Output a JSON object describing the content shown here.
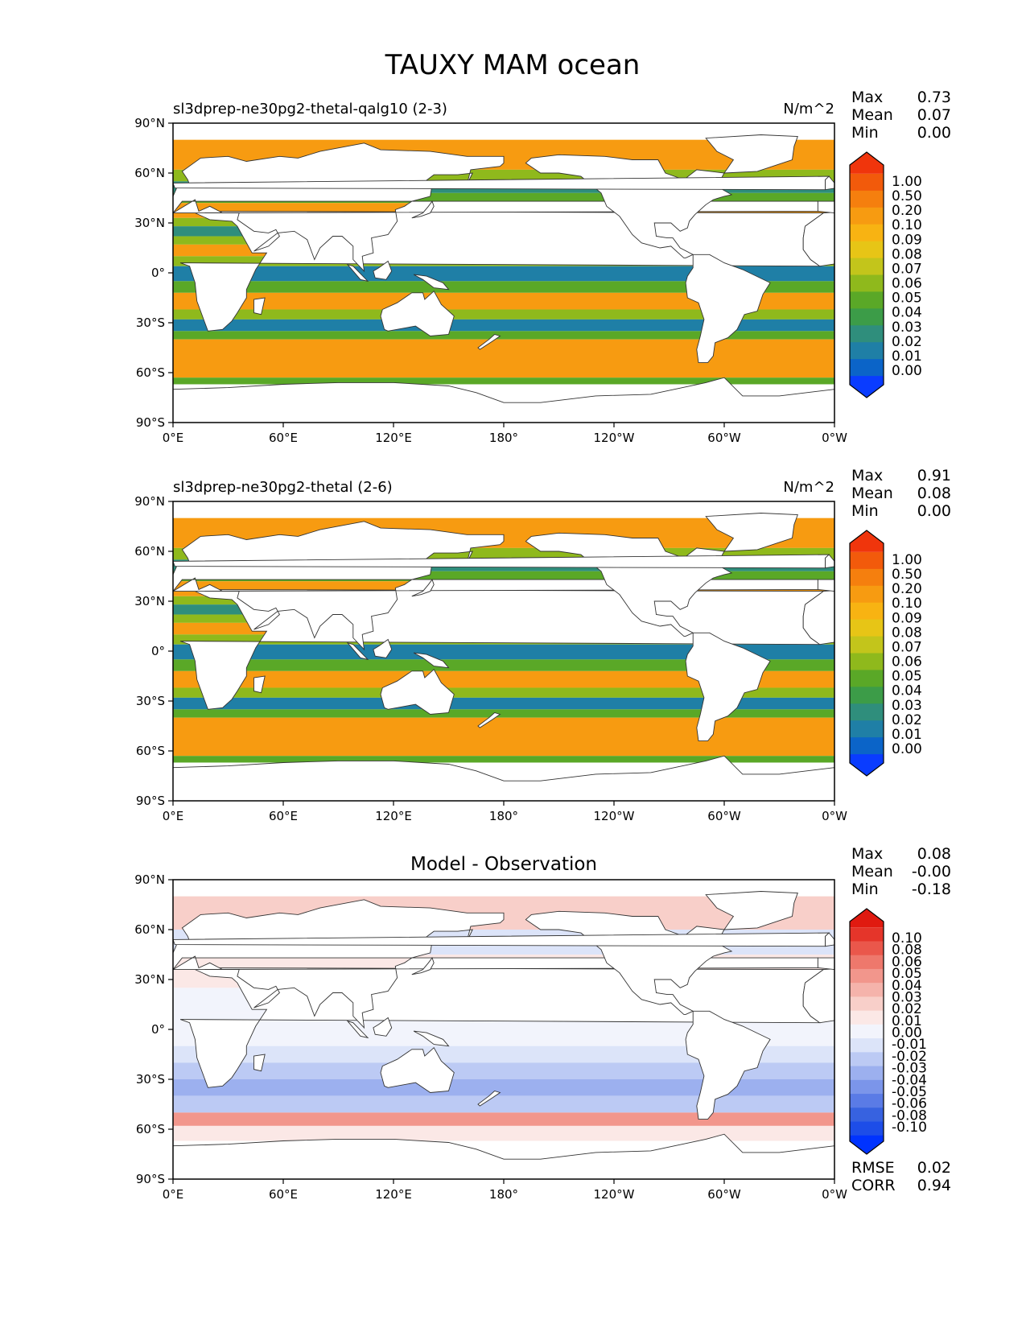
{
  "title": "TAUXY MAM ocean",
  "colors": {
    "land": "#ffffff",
    "coast": "#333333",
    "field_scale": [
      "#0a3cff",
      "#0b64c8",
      "#1f7fa6",
      "#2f8e7c",
      "#3c9c48",
      "#5aa827",
      "#8fb91c",
      "#c3c51b",
      "#e7c516",
      "#f8b312",
      "#f79b11",
      "#f57f0e",
      "#f25a0b",
      "#f0350c"
    ],
    "diff_scale": [
      "#0033ff",
      "#1d4de8",
      "#3762e0",
      "#5a7be6",
      "#7b95ea",
      "#9cb0ef",
      "#bccaf4",
      "#dce4f9",
      "#f2f4fc",
      "#fbe8e6",
      "#f8cfc9",
      "#f5b3ab",
      "#f2968c",
      "#ee786c",
      "#ea574b",
      "#e5352a",
      "#e01a10"
    ]
  },
  "axes": {
    "lat_ticks": [
      "90°N",
      "60°N",
      "30°N",
      "0°",
      "30°S",
      "60°S",
      "90°S"
    ],
    "lon_ticks": [
      "0°E",
      "60°E",
      "120°E",
      "180°",
      "120°W",
      "60°W",
      "0°W"
    ]
  },
  "panels": [
    {
      "subtitle_left": "sl3dprep-ne30pg2-thetal-qalg10 (2-3)",
      "subtitle_center": "",
      "units": "N/m^2",
      "stats": [
        {
          "label": "Max",
          "value": "0.73"
        },
        {
          "label": "Mean",
          "value": "0.07"
        },
        {
          "label": "Min",
          "value": "0.00"
        }
      ],
      "colorbar_labels": [
        "1.00",
        "0.50",
        "0.20",
        "0.10",
        "0.09",
        "0.08",
        "0.07",
        "0.06",
        "0.05",
        "0.04",
        "0.03",
        "0.02",
        "0.01",
        "0.00"
      ],
      "scale": "field",
      "extra_stats": []
    },
    {
      "subtitle_left": "sl3dprep-ne30pg2-thetal (2-6)",
      "subtitle_center": "",
      "units": "N/m^2",
      "stats": [
        {
          "label": "Max",
          "value": "0.91"
        },
        {
          "label": "Mean",
          "value": "0.08"
        },
        {
          "label": "Min",
          "value": "0.00"
        }
      ],
      "colorbar_labels": [
        "1.00",
        "0.50",
        "0.20",
        "0.10",
        "0.09",
        "0.08",
        "0.07",
        "0.06",
        "0.05",
        "0.04",
        "0.03",
        "0.02",
        "0.01",
        "0.00"
      ],
      "scale": "field",
      "extra_stats": []
    },
    {
      "subtitle_left": "",
      "subtitle_center": "Model - Observation",
      "units": "",
      "stats": [
        {
          "label": "Max",
          "value": "0.08"
        },
        {
          "label": "Mean",
          "value": "-0.00"
        },
        {
          "label": "Min",
          "value": "-0.18"
        }
      ],
      "colorbar_labels": [
        "0.10",
        "0.08",
        "0.06",
        "0.05",
        "0.04",
        "0.03",
        "0.02",
        "0.01",
        "0.00",
        "-0.01",
        "-0.02",
        "-0.03",
        "-0.04",
        "-0.05",
        "-0.06",
        "-0.08",
        "-0.10"
      ],
      "scale": "diff",
      "extra_stats": [
        {
          "label": "RMSE",
          "value": "0.02"
        },
        {
          "label": "CORR",
          "value": "0.94"
        }
      ]
    }
  ]
}
